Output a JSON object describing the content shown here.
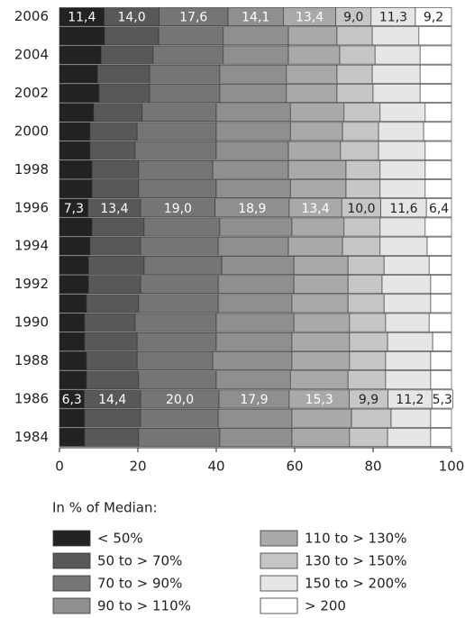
{
  "chart_data": {
    "type": "stacked_barh",
    "categories": [
      "1984",
      null,
      "1986",
      null,
      "1988",
      null,
      "1990",
      null,
      "1992",
      null,
      "1994",
      null,
      "1996",
      null,
      "1998",
      null,
      "2000",
      null,
      "2002",
      null,
      "2004",
      null,
      "2006"
    ],
    "xlim": [
      0,
      100
    ],
    "xticks": [
      0,
      20,
      40,
      60,
      80,
      100
    ],
    "legend_title": "In % of Median:",
    "series": [
      {
        "name": "< 50%",
        "color": "#222222",
        "values": [
          6.4,
          6.4,
          6.3,
          6.9,
          6.9,
          6.4,
          6.4,
          6.9,
          7.4,
          7.4,
          7.8,
          8.3,
          7.3,
          8.3,
          8.3,
          7.8,
          7.8,
          8.7,
          10.1,
          9.7,
          10.6,
          11.5,
          11.4
        ],
        "value_labels": [
          null,
          null,
          "6,3",
          null,
          null,
          null,
          null,
          null,
          null,
          null,
          null,
          null,
          "7,3",
          null,
          null,
          null,
          null,
          null,
          null,
          null,
          null,
          null,
          "11,4"
        ]
      },
      {
        "name": "50 to > 70%",
        "color": "#585858",
        "values": [
          13.8,
          14.3,
          14.4,
          13.3,
          12.9,
          13.4,
          12.9,
          13.3,
          13.3,
          14.2,
          12.9,
          13.3,
          13.4,
          11.9,
          11.9,
          11.5,
          12.0,
          12.4,
          12.9,
          13.3,
          13.3,
          13.8,
          14.0
        ],
        "value_labels": [
          null,
          null,
          "14,4",
          null,
          null,
          null,
          null,
          null,
          null,
          null,
          null,
          null,
          "13,4",
          null,
          null,
          null,
          null,
          null,
          null,
          null,
          null,
          null,
          "14,0"
        ]
      },
      {
        "name": "70 to > 90%",
        "color": "#757575",
        "values": [
          20.7,
          19.8,
          20.0,
          19.8,
          19.3,
          20.2,
          20.7,
          20.3,
          19.8,
          19.8,
          19.8,
          19.3,
          19.0,
          19.8,
          18.9,
          20.7,
          20.2,
          18.9,
          17.9,
          17.9,
          17.9,
          16.5,
          17.6
        ],
        "value_labels": [
          null,
          null,
          "20,0",
          null,
          null,
          null,
          null,
          null,
          null,
          null,
          null,
          null,
          "19,0",
          null,
          null,
          null,
          null,
          null,
          null,
          null,
          null,
          null,
          "17,6"
        ]
      },
      {
        "name": "90 to > 110%",
        "color": "#8f8f8f",
        "values": [
          18.4,
          18.8,
          17.9,
          18.9,
          20.2,
          19.3,
          19.8,
          18.8,
          19.3,
          18.4,
          17.9,
          18.4,
          18.9,
          18.9,
          19.3,
          18.4,
          18.9,
          18.9,
          17.0,
          17.0,
          16.6,
          16.6,
          14.1
        ],
        "value_labels": [
          null,
          null,
          "17,9",
          null,
          null,
          null,
          null,
          null,
          null,
          null,
          null,
          null,
          "18,9",
          null,
          null,
          null,
          null,
          null,
          null,
          null,
          null,
          null,
          "14,1"
        ]
      },
      {
        "name": "110 to > 130%",
        "color": "#a9a9a9",
        "values": [
          14.7,
          15.2,
          15.3,
          14.7,
          14.7,
          14.7,
          14.2,
          14.3,
          13.8,
          13.8,
          13.8,
          13.3,
          13.4,
          14.2,
          14.7,
          13.3,
          13.3,
          13.7,
          12.9,
          12.9,
          13.1,
          12.4,
          13.4
        ],
        "value_labels": [
          null,
          null,
          "15,3",
          null,
          null,
          null,
          null,
          null,
          null,
          null,
          null,
          null,
          "13,4",
          null,
          null,
          null,
          null,
          null,
          null,
          null,
          null,
          null,
          "13,4"
        ]
      },
      {
        "name": "130 to > 150%",
        "color": "#c6c6c6",
        "values": [
          9.7,
          10.1,
          9.9,
          9.6,
          9.2,
          9.7,
          9.2,
          9.2,
          8.7,
          9.2,
          9.6,
          9.2,
          10.0,
          8.7,
          8.7,
          9.7,
          9.2,
          9.2,
          9.2,
          9.0,
          9.0,
          9.0,
          9.0
        ],
        "value_labels": [
          null,
          null,
          "9,9",
          null,
          null,
          null,
          null,
          null,
          null,
          null,
          null,
          null,
          "10,0",
          null,
          null,
          null,
          null,
          null,
          null,
          null,
          null,
          null,
          "9,0"
        ]
      },
      {
        "name": "150 to > 200%",
        "color": "#e6e6e6",
        "values": [
          11.0,
          10.1,
          11.2,
          11.5,
          11.5,
          11.5,
          11.1,
          11.9,
          12.4,
          11.5,
          12.0,
          11.5,
          11.6,
          11.5,
          11.5,
          11.9,
          11.5,
          11.5,
          12.0,
          12.2,
          11.5,
          11.9,
          11.3
        ],
        "value_labels": [
          null,
          null,
          "11,2",
          null,
          null,
          null,
          null,
          null,
          null,
          null,
          null,
          null,
          "11,6",
          null,
          null,
          null,
          null,
          null,
          null,
          null,
          null,
          null,
          "11,3"
        ]
      },
      {
        "name": "> 200",
        "color": "#ffffff",
        "values": [
          5.3,
          5.3,
          5.3,
          5.3,
          5.3,
          4.8,
          5.7,
          5.3,
          5.3,
          5.7,
          6.2,
          6.7,
          6.4,
          6.7,
          6.7,
          6.7,
          7.1,
          6.7,
          8.0,
          8.0,
          8.0,
          8.3,
          9.2
        ],
        "value_labels": [
          null,
          null,
          "5,3",
          null,
          null,
          null,
          null,
          null,
          null,
          null,
          null,
          null,
          "6,4",
          null,
          null,
          null,
          null,
          null,
          null,
          null,
          null,
          null,
          "9,2"
        ]
      }
    ]
  }
}
